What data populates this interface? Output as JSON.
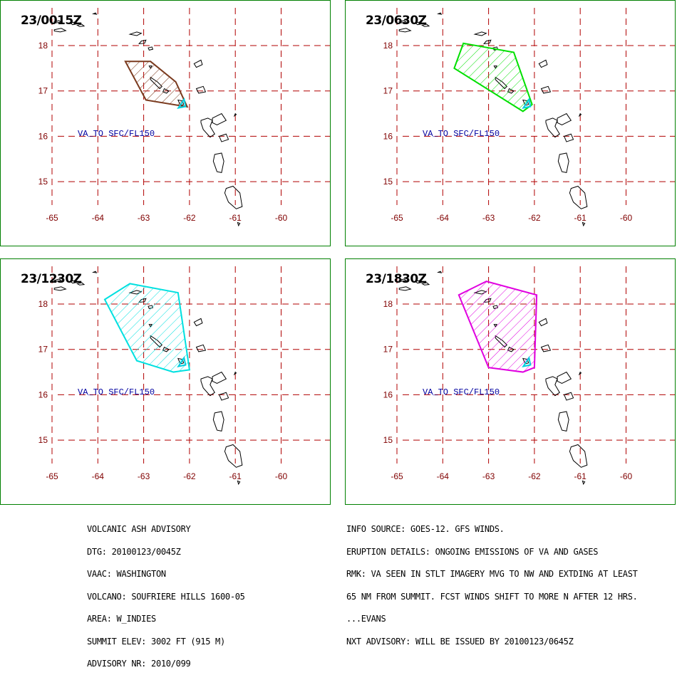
{
  "map": {
    "lon_ticks": [
      "-65",
      "-64",
      "-63",
      "-62",
      "-61",
      "-60"
    ],
    "lat_ticks": [
      "18",
      "17",
      "16",
      "15"
    ],
    "va_label": "VA_TO SFC/FL150",
    "colors": {
      "border": "#008000",
      "grid": "#b00000",
      "coast": "#000000",
      "volcano_marker": "#00d0e0",
      "va_label": "#0000a0"
    }
  },
  "panels": [
    {
      "time": "23/0015Z",
      "color": "#7a3a1e",
      "polygon": [
        [
          -63.4,
          17.65
        ],
        [
          -62.85,
          17.65
        ],
        [
          -62.3,
          17.2
        ],
        [
          -62.05,
          16.65
        ],
        [
          -62.95,
          16.8
        ]
      ]
    },
    {
      "time": "23/0630Z",
      "color": "#00e000",
      "polygon": [
        [
          -63.55,
          18.05
        ],
        [
          -62.45,
          17.85
        ],
        [
          -62.05,
          16.7
        ],
        [
          -62.25,
          16.55
        ],
        [
          -63.75,
          17.5
        ]
      ]
    },
    {
      "time": "23/1230Z",
      "color": "#00e0e0",
      "polygon": [
        [
          -63.3,
          18.45
        ],
        [
          -62.25,
          18.25
        ],
        [
          -62.0,
          16.55
        ],
        [
          -62.35,
          16.5
        ],
        [
          -63.15,
          16.75
        ],
        [
          -63.85,
          18.1
        ]
      ]
    },
    {
      "time": "23/1830Z",
      "color": "#e000e0",
      "polygon": [
        [
          -63.05,
          18.5
        ],
        [
          -61.95,
          18.2
        ],
        [
          -62.0,
          16.6
        ],
        [
          -62.25,
          16.5
        ],
        [
          -63.0,
          16.6
        ],
        [
          -63.65,
          18.2
        ]
      ]
    }
  ],
  "footer": {
    "left": [
      "VOLCANIC ASH ADVISORY",
      "DTG: 20100123/0045Z",
      "VAAC: WASHINGTON",
      "VOLCANO: SOUFRIERE HILLS 1600-05",
      "AREA: W_INDIES",
      "SUMMIT ELEV: 3002 FT (915 M)",
      "ADVISORY NR: 2010/099"
    ],
    "right": [
      "INFO SOURCE: GOES-12. GFS WINDS.",
      "ERUPTION DETAILS: ONGOING EMISSIONS OF VA AND GASES",
      "RMK: VA SEEN IN STLT IMAGERY MVG TO NW AND EXTDING AT LEAST",
      "65 NM FROM SUMMIT. FCST WINDS SHIFT TO MORE N AFTER 12 HRS.",
      "...EVANS",
      "NXT ADVISORY: WILL BE ISSUED BY 20100123/0645Z"
    ]
  }
}
